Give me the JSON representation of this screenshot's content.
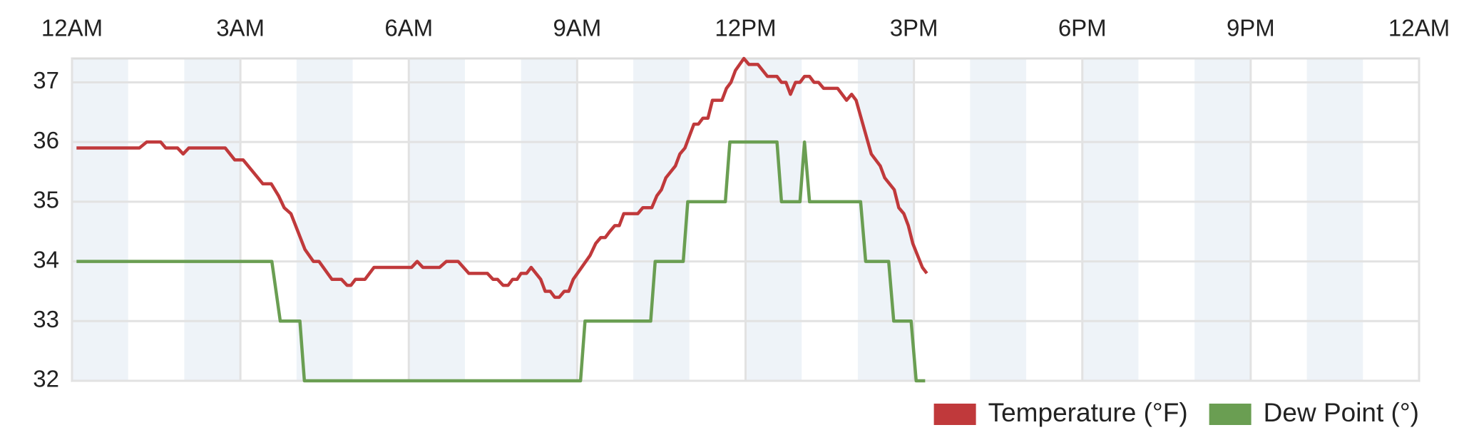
{
  "chart_data": {
    "type": "line",
    "xlim": [
      0,
      24
    ],
    "xticks": [
      {
        "value": 0,
        "label": "12AM"
      },
      {
        "value": 3,
        "label": "3AM"
      },
      {
        "value": 6,
        "label": "6AM"
      },
      {
        "value": 9,
        "label": "9AM"
      },
      {
        "value": 12,
        "label": "12PM"
      },
      {
        "value": 15,
        "label": "3PM"
      },
      {
        "value": 18,
        "label": "6PM"
      },
      {
        "value": 21,
        "label": "9PM"
      },
      {
        "value": 24,
        "label": "12AM"
      }
    ],
    "ylim": [
      32,
      37.4
    ],
    "yticks": [
      32,
      33,
      34,
      35,
      36,
      37
    ],
    "grid": true,
    "legend": "bottom-right",
    "series": [
      {
        "name": "Temperature (°F)",
        "color": "#c0393b",
        "x": [
          0.08,
          1.2,
          1.33,
          1.58,
          1.67,
          1.88,
          1.98,
          2.08,
          2.73,
          2.9,
          3.05,
          3.4,
          3.55,
          3.68,
          3.78,
          3.9,
          4.15,
          4.3,
          4.4,
          4.63,
          4.8,
          4.9,
          4.97,
          5.05,
          5.22,
          5.38,
          6.05,
          6.15,
          6.25,
          6.55,
          6.67,
          6.88,
          7.07,
          7.4,
          7.5,
          7.58,
          7.68,
          7.77,
          7.85,
          7.93,
          8.0,
          8.1,
          8.18,
          8.35,
          8.43,
          8.52,
          8.6,
          8.68,
          8.77,
          8.85,
          8.93,
          9.23,
          9.33,
          9.42,
          9.5,
          9.58,
          9.67,
          9.75,
          9.83,
          10.08,
          10.17,
          10.33,
          10.42,
          10.5,
          10.58,
          10.75,
          10.83,
          10.92,
          11.0,
          11.08,
          11.16,
          11.24,
          11.33,
          11.41,
          11.58,
          11.66,
          11.74,
          11.82,
          11.97,
          12.06,
          12.22,
          12.39,
          12.56,
          12.64,
          12.72,
          12.8,
          12.89,
          12.97,
          13.05,
          13.14,
          13.22,
          13.3,
          13.39,
          13.64,
          13.8,
          13.89,
          13.97,
          14.24,
          14.4,
          14.48,
          14.65,
          14.73,
          14.82,
          14.9,
          14.98,
          15.15,
          15.23
        ],
        "values": [
          35.9,
          35.9,
          36.0,
          36.0,
          35.9,
          35.9,
          35.8,
          35.9,
          35.9,
          35.7,
          35.7,
          35.3,
          35.3,
          35.1,
          34.9,
          34.8,
          34.2,
          34.0,
          34.0,
          33.7,
          33.7,
          33.6,
          33.6,
          33.7,
          33.7,
          33.9,
          33.9,
          34.0,
          33.9,
          33.9,
          34.0,
          34.0,
          33.8,
          33.8,
          33.7,
          33.7,
          33.6,
          33.6,
          33.7,
          33.7,
          33.8,
          33.8,
          33.9,
          33.7,
          33.5,
          33.5,
          33.4,
          33.4,
          33.5,
          33.5,
          33.7,
          34.1,
          34.3,
          34.4,
          34.4,
          34.5,
          34.6,
          34.6,
          34.8,
          34.8,
          34.9,
          34.9,
          35.1,
          35.2,
          35.4,
          35.6,
          35.8,
          35.9,
          36.1,
          36.3,
          36.3,
          36.4,
          36.4,
          36.7,
          36.7,
          36.9,
          37.0,
          37.2,
          37.4,
          37.3,
          37.3,
          37.1,
          37.1,
          37.0,
          37.0,
          36.8,
          37.0,
          37.0,
          37.1,
          37.1,
          37.0,
          37.0,
          36.9,
          36.9,
          36.7,
          36.8,
          36.7,
          35.8,
          35.6,
          35.4,
          35.2,
          34.9,
          34.8,
          34.6,
          34.3,
          33.9,
          33.8
        ]
      },
      {
        "name": "Dew Point (°)",
        "color": "#6a9e52",
        "x": [
          0.08,
          3.56,
          3.71,
          4.06,
          4.14,
          9.06,
          9.14,
          10.31,
          10.39,
          10.89,
          10.97,
          11.64,
          11.72,
          12.56,
          12.64,
          12.97,
          13.05,
          13.14,
          14.05,
          14.14,
          14.55,
          14.64,
          14.95,
          15.04,
          15.2
        ],
        "values": [
          34,
          34,
          33,
          33,
          32,
          32,
          33,
          33,
          34,
          34,
          35,
          35,
          36,
          36,
          35,
          35,
          36,
          35,
          35,
          34,
          34,
          33,
          33,
          32,
          32
        ]
      }
    ]
  }
}
